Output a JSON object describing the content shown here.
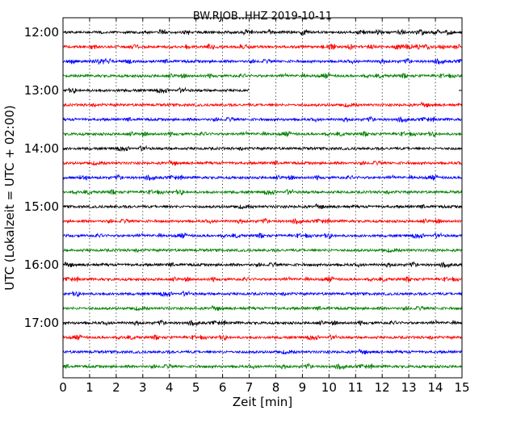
{
  "chart_data": {
    "type": "line",
    "subtype": "helicorder",
    "title": "BW.RJOB..HHZ 2019-10-11",
    "xlabel": "Zeit  [min]",
    "ylabel": "UTC (Lokalzeit = UTC + 02:00)",
    "xlim": [
      0,
      15
    ],
    "x_ticks": [
      "0",
      "1",
      "2",
      "3",
      "4",
      "5",
      "6",
      "7",
      "8",
      "9",
      "10",
      "11",
      "12",
      "13",
      "14",
      "15"
    ],
    "y_tick_labels": [
      "12:00",
      "13:00",
      "14:00",
      "15:00",
      "16:00",
      "17:00"
    ],
    "minutes_per_line": 15,
    "grid": "vertical dotted lines at each minute",
    "color_cycle": [
      "#000000",
      "#ff0000",
      "#0000ff",
      "#008000"
    ],
    "series": [
      {
        "start": "12:00",
        "end_minute": 15,
        "color": "#000000"
      },
      {
        "start": "12:15",
        "end_minute": 15,
        "color": "#ff0000"
      },
      {
        "start": "12:30",
        "end_minute": 15,
        "color": "#0000ff"
      },
      {
        "start": "12:45",
        "end_minute": 15,
        "color": "#008000"
      },
      {
        "start": "13:00",
        "end_minute": 7,
        "color": "#000000"
      },
      {
        "start": "13:15",
        "end_minute": 15,
        "color": "#ff0000"
      },
      {
        "start": "13:30",
        "end_minute": 15,
        "color": "#0000ff"
      },
      {
        "start": "13:45",
        "end_minute": 15,
        "color": "#008000"
      },
      {
        "start": "14:00",
        "end_minute": 15,
        "color": "#000000"
      },
      {
        "start": "14:15",
        "end_minute": 15,
        "color": "#ff0000"
      },
      {
        "start": "14:30",
        "end_minute": 15,
        "color": "#0000ff"
      },
      {
        "start": "14:45",
        "end_minute": 15,
        "color": "#008000"
      },
      {
        "start": "15:00",
        "end_minute": 15,
        "color": "#000000"
      },
      {
        "start": "15:15",
        "end_minute": 15,
        "color": "#ff0000"
      },
      {
        "start": "15:30",
        "end_minute": 15,
        "color": "#0000ff"
      },
      {
        "start": "15:45",
        "end_minute": 15,
        "color": "#008000"
      },
      {
        "start": "16:00",
        "end_minute": 15,
        "color": "#000000"
      },
      {
        "start": "16:15",
        "end_minute": 15,
        "color": "#ff0000"
      },
      {
        "start": "16:30",
        "end_minute": 15,
        "color": "#0000ff"
      },
      {
        "start": "16:45",
        "end_minute": 15,
        "color": "#008000"
      },
      {
        "start": "17:00",
        "end_minute": 15,
        "color": "#000000"
      },
      {
        "start": "17:15",
        "end_minute": 15,
        "color": "#ff0000"
      },
      {
        "start": "17:30",
        "end_minute": 15,
        "color": "#0000ff"
      },
      {
        "start": "17:45",
        "end_minute": 15,
        "color": "#008000"
      }
    ]
  }
}
